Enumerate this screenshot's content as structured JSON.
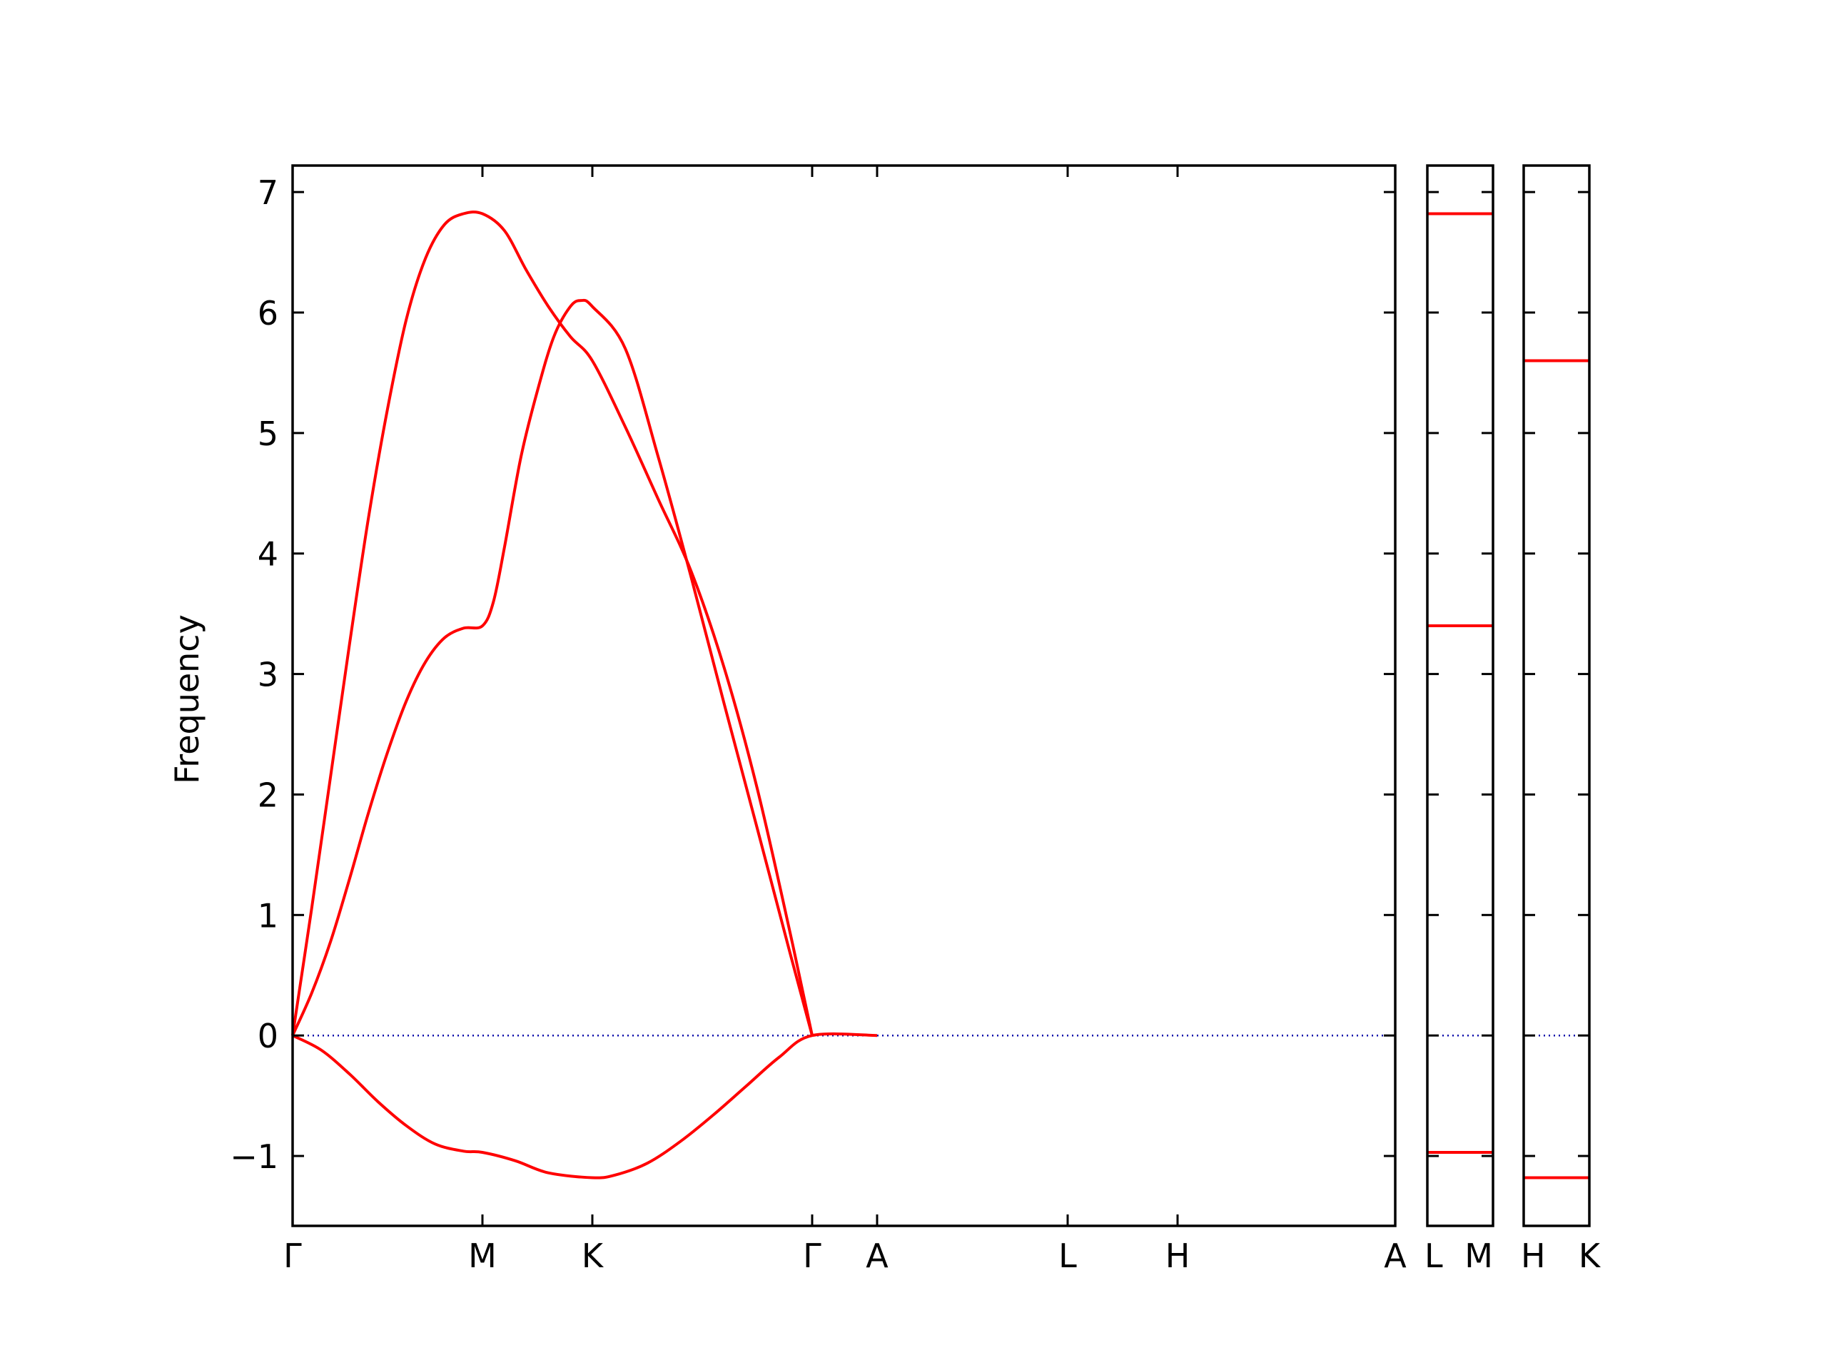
{
  "chart_data": {
    "type": "line",
    "ylabel": "Frequency",
    "ylim": [
      -1.58,
      7.22
    ],
    "y_ticks": [
      7,
      6,
      5,
      4,
      3,
      2,
      1,
      0,
      -1
    ],
    "y_tick_labels": [
      "7",
      "6",
      "5",
      "4",
      "3",
      "2",
      "1",
      "0",
      "−1"
    ],
    "grid": false,
    "zero_line": {
      "value": 0,
      "style": "dotted",
      "color": "#0000aa"
    },
    "line_color": "#ff0000",
    "panels": [
      {
        "name": "main-path",
        "x_labels": [
          "Γ",
          "M",
          "K",
          "Γ",
          "A",
          "L",
          "H",
          "A"
        ],
        "series": [
          {
            "points": [
              [
                "Γ",
                0.0
              ],
              [
                0.1,
                0.35
              ],
              [
                0.2,
                0.78
              ],
              [
                0.3,
                1.3
              ],
              [
                0.4,
                1.85
              ],
              [
                0.5,
                2.35
              ],
              [
                0.6,
                2.78
              ],
              [
                0.7,
                3.1
              ],
              [
                0.8,
                3.3
              ],
              [
                0.9,
                3.38
              ],
              [
                "M",
                3.4
              ],
              [
                0.1,
                3.6
              ],
              [
                0.2,
                4.05
              ],
              [
                0.35,
                4.8
              ],
              [
                0.5,
                5.35
              ],
              [
                0.65,
                5.8
              ],
              [
                0.8,
                6.05
              ],
              [
                0.9,
                6.1
              ],
              [
                "K",
                6.05
              ],
              [
                0.15,
                5.7
              ],
              [
                0.3,
                4.8
              ],
              [
                0.45,
                3.8
              ],
              [
                0.6,
                2.75
              ],
              [
                0.75,
                1.72
              ],
              [
                0.9,
                0.68
              ],
              [
                "Γ",
                0.0
              ]
            ]
          },
          {
            "points": [
              [
                "Γ",
                0.0
              ],
              [
                0.1,
                1.05
              ],
              [
                0.2,
                2.15
              ],
              [
                0.3,
                3.25
              ],
              [
                0.4,
                4.3
              ],
              [
                0.5,
                5.2
              ],
              [
                0.6,
                5.95
              ],
              [
                0.7,
                6.45
              ],
              [
                0.8,
                6.73
              ],
              [
                0.9,
                6.82
              ],
              [
                "M",
                6.82
              ],
              [
                0.2,
                6.68
              ],
              [
                0.4,
                6.35
              ],
              [
                0.6,
                6.05
              ],
              [
                0.8,
                5.8
              ],
              [
                "K",
                5.6
              ],
              [
                0.15,
                5.05
              ],
              [
                0.3,
                4.45
              ],
              [
                0.45,
                3.85
              ],
              [
                0.6,
                3.05
              ],
              [
                0.75,
                2.05
              ],
              [
                0.9,
                0.85
              ],
              [
                "Γ",
                0.0
              ]
            ]
          },
          {
            "points": [
              [
                "Γ",
                0.0
              ],
              [
                0.15,
                -0.12
              ],
              [
                0.3,
                -0.32
              ],
              [
                0.45,
                -0.55
              ],
              [
                0.6,
                -0.75
              ],
              [
                0.75,
                -0.9
              ],
              [
                0.9,
                -0.96
              ],
              [
                "M",
                -0.97
              ],
              [
                0.3,
                -1.04
              ],
              [
                0.6,
                -1.14
              ],
              [
                "K",
                -1.18
              ],
              [
                0.1,
                -1.16
              ],
              [
                0.25,
                -1.06
              ],
              [
                0.4,
                -0.88
              ],
              [
                0.55,
                -0.66
              ],
              [
                0.7,
                -0.42
              ],
              [
                0.85,
                -0.18
              ],
              [
                "Γ",
                0.0
              ],
              [
                "A",
                0.0
              ]
            ]
          }
        ]
      },
      {
        "name": "L-M",
        "x_labels": [
          "L",
          "M"
        ],
        "flat_values": [
          6.82,
          3.4,
          -0.97
        ]
      },
      {
        "name": "H-K",
        "x_labels": [
          "H",
          "K"
        ],
        "flat_values": [
          5.6,
          -1.18
        ]
      }
    ]
  }
}
